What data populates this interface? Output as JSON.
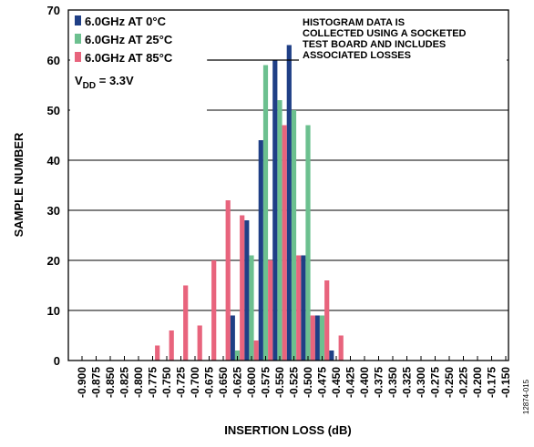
{
  "chart_data": {
    "type": "bar",
    "title": "",
    "xlabel": "INSERTION LOSS (dB)",
    "ylabel": "SAMPLE NUMBER",
    "ylim": [
      0,
      70
    ],
    "yticks": [
      0,
      10,
      20,
      30,
      40,
      50,
      60,
      70
    ],
    "grid": true,
    "legend_position": "top-left",
    "categories": [
      "-0.900",
      "-0.875",
      "-0.850",
      "-0.825",
      "-0.800",
      "-0.775",
      "-0.750",
      "-0.725",
      "-0.700",
      "-0.675",
      "-0.650",
      "-0.625",
      "-0.600",
      "-0.575",
      "-0.550",
      "-0.525",
      "-0.500",
      "-0.475",
      "-0.450",
      "-0.425",
      "-0.400",
      "-0.375",
      "-0.350",
      "-0.325",
      "-0.300",
      "-0.275",
      "-0.250",
      "-0.225",
      "-0.200",
      "-0.175",
      "-0.150"
    ],
    "series": [
      {
        "name": "6.0GHz AT 0°C",
        "color": "#1f3f86",
        "values": [
          0,
          0,
          0,
          0,
          0,
          0,
          0,
          0,
          0,
          0,
          0,
          9,
          28,
          44,
          60,
          63,
          21,
          9,
          2,
          0,
          0,
          0,
          0,
          0,
          0,
          0,
          0,
          0,
          0,
          0,
          0
        ]
      },
      {
        "name": "6.0GHz AT 25°C",
        "color": "#6cc08f",
        "values": [
          0,
          0,
          0,
          0,
          0,
          0,
          0,
          0,
          0,
          0,
          0,
          2,
          21,
          59,
          52,
          50,
          47,
          9,
          0,
          0,
          0,
          0,
          0,
          0,
          0,
          0,
          0,
          0,
          0,
          0,
          0
        ]
      },
      {
        "name": "6.0GHz AT 85°C",
        "color": "#e8647d",
        "values": [
          0,
          0,
          0,
          0,
          0,
          3,
          6,
          15,
          7,
          20,
          32,
          29,
          4,
          20,
          47,
          21,
          9,
          16,
          5,
          0,
          0,
          0,
          0,
          0,
          0,
          0,
          0,
          0,
          0,
          0,
          0
        ]
      }
    ],
    "annotations": {
      "note_lines": [
        "HISTOGRAM DATA IS",
        "COLLECTED USING A SOCKETED",
        "TEST BOARD AND INCLUDES",
        "ASSOCIATED LOSSES"
      ],
      "vdd_prefix": "V",
      "vdd_subscript": "DD",
      "vdd_value": " = 3.3V"
    },
    "figure_id": "12874-015"
  }
}
